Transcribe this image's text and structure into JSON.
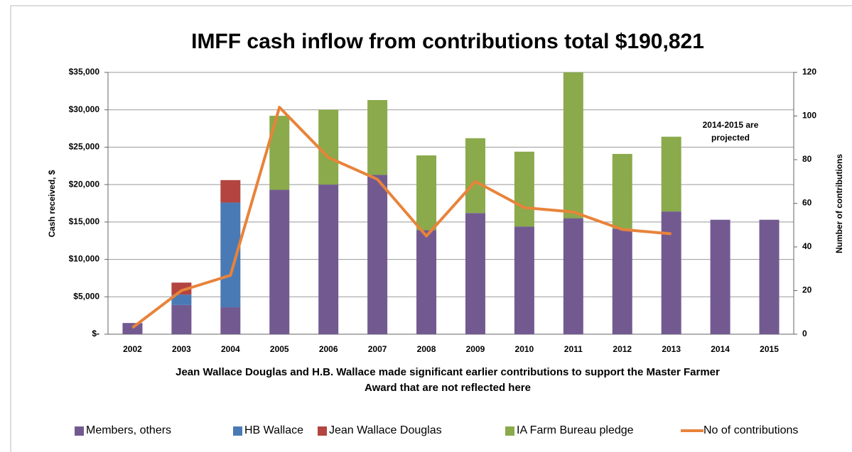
{
  "chart_data": {
    "type": "bar",
    "title": "IMFF cash inflow from contributions total $190,821",
    "note": [
      "Jean Wallace Douglas and H.B. Wallace made significant earlier contributions to support the Master Farmer",
      "Award that are not reflected here"
    ],
    "annotation": [
      "2014-2015 are",
      "projected"
    ],
    "ylabel": "Cash received, $",
    "y2label": "Number of contributions",
    "stacked": true,
    "categories": [
      "2002",
      "2003",
      "2004",
      "2005",
      "2006",
      "2007",
      "2008",
      "2009",
      "2010",
      "2011",
      "2012",
      "2013",
      "2014",
      "2015"
    ],
    "series": [
      {
        "name": "Members, others",
        "color": "#725a91",
        "values": [
          1500,
          3900,
          3600,
          19300,
          20000,
          21300,
          13900,
          16200,
          14400,
          15500,
          14100,
          16400,
          15300,
          15300
        ]
      },
      {
        "name": "HB Wallace",
        "color": "#4a7ab5",
        "values": [
          0,
          1400,
          14000,
          0,
          0,
          0,
          0,
          0,
          0,
          0,
          0,
          0,
          0,
          0
        ]
      },
      {
        "name": "Jean Wallace Douglas",
        "color": "#b34440",
        "values": [
          0,
          1600,
          3000,
          0,
          0,
          0,
          0,
          0,
          0,
          0,
          0,
          0,
          0,
          0
        ]
      },
      {
        "name": "IA Farm Bureau pledge",
        "color": "#8aaa4b",
        "values": [
          0,
          0,
          0,
          9900,
          10000,
          10000,
          10000,
          10000,
          10000,
          20000,
          10000,
          10000,
          0,
          0
        ]
      },
      {
        "name": "No of contributions",
        "color": "#e8833a",
        "type": "line",
        "axis": "y2",
        "values": [
          3,
          20,
          27,
          104,
          81,
          71,
          45,
          70,
          58,
          56,
          48,
          46,
          null,
          null
        ]
      }
    ],
    "ylim": [
      0,
      35000
    ],
    "yticks": [
      {
        "value": 0,
        "label": "$-"
      },
      {
        "value": 5000,
        "label": "$5,000"
      },
      {
        "value": 10000,
        "label": "$10,000"
      },
      {
        "value": 15000,
        "label": "$15,000"
      },
      {
        "value": 20000,
        "label": "$20,000"
      },
      {
        "value": 25000,
        "label": "$25,000"
      },
      {
        "value": 30000,
        "label": "$30,000"
      },
      {
        "value": 35000,
        "label": "$35,000"
      }
    ],
    "y2lim": [
      0,
      120
    ],
    "y2ticks": [
      0,
      20,
      40,
      60,
      80,
      100,
      120
    ],
    "grid": true,
    "legend": "bottom"
  }
}
